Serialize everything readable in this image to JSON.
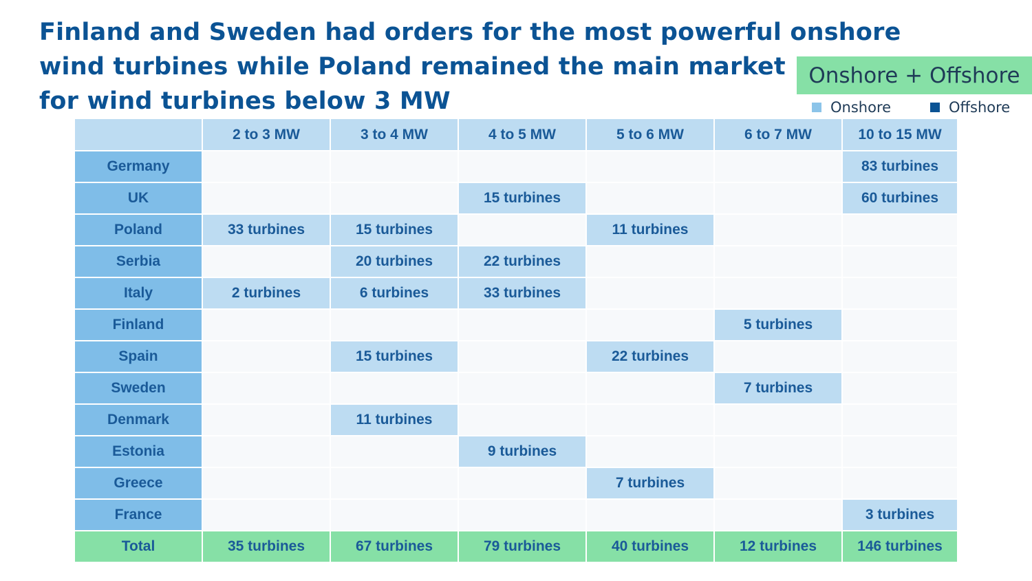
{
  "title_lines": [
    "Finland and Sweden had orders for the most powerful onshore",
    "wind turbines while Poland remained the main market",
    "for wind turbines below 3 MW"
  ],
  "badge": "Onshore + Offshore",
  "legend": {
    "onshore": "Onshore",
    "offshore": "Offshore"
  },
  "colors": {
    "onshore": "#8cc4e9",
    "offshore": "#0b5394",
    "total": "#86e0a6",
    "filled_cell": "#bddcf2",
    "country_cell": "#7fbde8"
  },
  "chart_data": {
    "type": "table",
    "columns": [
      "2 to 3 MW",
      "3 to 4 MW",
      "4 to 5 MW",
      "5 to 6 MW",
      "6 to 7 MW",
      "10 to 15 MW"
    ],
    "column_types": [
      "onshore",
      "onshore",
      "onshore",
      "onshore",
      "onshore",
      "offshore"
    ],
    "rows": [
      {
        "country": "Germany",
        "cells": [
          "",
          "",
          "",
          "",
          "",
          "83 turbines"
        ]
      },
      {
        "country": "UK",
        "cells": [
          "",
          "",
          "15 turbines",
          "",
          "",
          "60 turbines"
        ]
      },
      {
        "country": "Poland",
        "cells": [
          "33 turbines",
          "15 turbines",
          "",
          "11 turbines",
          "",
          ""
        ]
      },
      {
        "country": "Serbia",
        "cells": [
          "",
          "20 turbines",
          "22 turbines",
          "",
          "",
          ""
        ]
      },
      {
        "country": "Italy",
        "cells": [
          "2 turbines",
          "6 turbines",
          "33 turbines",
          "",
          "",
          ""
        ]
      },
      {
        "country": "Finland",
        "cells": [
          "",
          "",
          "",
          "",
          "5 turbines",
          ""
        ]
      },
      {
        "country": "Spain",
        "cells": [
          "",
          "15 turbines",
          "",
          "22 turbines",
          "",
          ""
        ]
      },
      {
        "country": "Sweden",
        "cells": [
          "",
          "",
          "",
          "",
          "7 turbines",
          ""
        ]
      },
      {
        "country": "Denmark",
        "cells": [
          "",
          "11 turbines",
          "",
          "",
          "",
          ""
        ]
      },
      {
        "country": "Estonia",
        "cells": [
          "",
          "",
          "9 turbines",
          "",
          "",
          ""
        ]
      },
      {
        "country": "Greece",
        "cells": [
          "",
          "",
          "",
          "7 turbines",
          "",
          ""
        ]
      },
      {
        "country": "France",
        "cells": [
          "",
          "",
          "",
          "",
          "",
          "3 turbines"
        ]
      }
    ],
    "total": {
      "label": "Total",
      "cells": [
        "35 turbines",
        "67 turbines",
        "79 turbines",
        "40 turbines",
        "12 turbines",
        "146 turbines"
      ]
    }
  }
}
